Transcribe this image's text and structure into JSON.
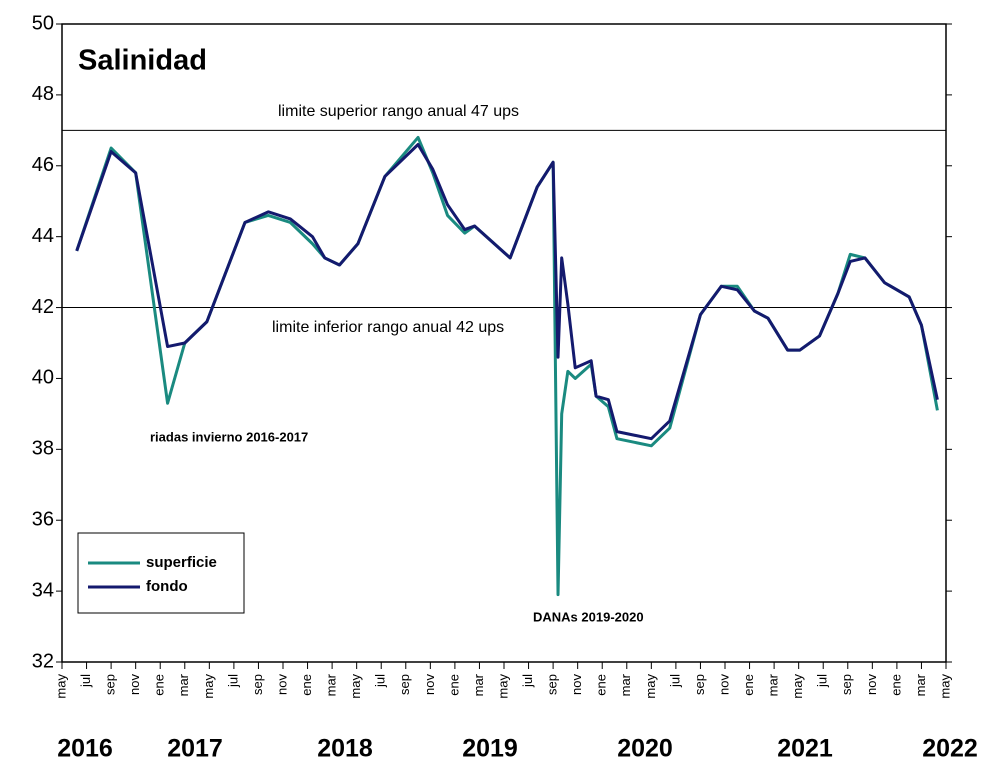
{
  "chart_data": {
    "type": "line",
    "title": "Salinidad",
    "x": [
      1.2,
      4,
      6,
      8.6,
      10,
      11.8,
      14.9,
      16.8,
      18.6,
      20.4,
      21.4,
      22.6,
      24.1,
      26.3,
      29,
      30.2,
      31.4,
      32.8,
      33.6,
      36.5,
      38.7,
      40,
      40.4,
      40.7,
      41.2,
      41.8,
      43.1,
      43.5,
      44.5,
      45.2,
      48,
      49.5,
      52,
      53.7,
      55,
      56.4,
      57.5,
      59.1,
      60.1,
      61.7,
      63.2,
      64.2,
      65.4,
      67,
      69,
      70,
      71.3
    ],
    "series": [
      {
        "name": "superficie",
        "color": "#1a8a80",
        "values": [
          43.6,
          46.5,
          45.8,
          39.3,
          41.0,
          41.6,
          44.4,
          44.6,
          44.4,
          43.8,
          43.4,
          43.2,
          43.8,
          45.7,
          46.8,
          45.8,
          44.6,
          44.1,
          44.3,
          43.4,
          45.4,
          46.1,
          33.9,
          39.0,
          40.2,
          40.0,
          40.4,
          39.5,
          39.2,
          38.3,
          38.1,
          38.6,
          41.8,
          42.6,
          42.6,
          41.9,
          41.7,
          40.8,
          40.8,
          41.2,
          42.4,
          43.5,
          43.4,
          42.7,
          42.3,
          41.5,
          39.1
        ]
      },
      {
        "name": "fondo",
        "color": "#141a6e",
        "values": [
          43.6,
          46.4,
          45.8,
          40.9,
          41.0,
          41.6,
          44.4,
          44.7,
          44.5,
          44.0,
          43.4,
          43.2,
          43.8,
          45.7,
          46.6,
          45.9,
          44.9,
          44.2,
          44.3,
          43.4,
          45.4,
          46.1,
          40.6,
          43.4,
          42.1,
          40.3,
          40.5,
          39.5,
          39.4,
          38.5,
          38.3,
          38.8,
          41.8,
          42.6,
          42.5,
          41.9,
          41.7,
          40.8,
          40.8,
          41.2,
          42.4,
          43.3,
          43.4,
          42.7,
          42.3,
          41.5,
          39.4
        ]
      }
    ],
    "xlim": [
      0,
      72
    ],
    "xticks": [
      {
        "value": 0,
        "label": "may"
      },
      {
        "value": 2,
        "label": "jul"
      },
      {
        "value": 4,
        "label": "sep"
      },
      {
        "value": 6,
        "label": "nov"
      },
      {
        "value": 8,
        "label": "ene"
      },
      {
        "value": 10,
        "label": "mar"
      },
      {
        "value": 12,
        "label": "may"
      },
      {
        "value": 14,
        "label": "jul"
      },
      {
        "value": 16,
        "label": "sep"
      },
      {
        "value": 18,
        "label": "nov"
      },
      {
        "value": 20,
        "label": "ene"
      },
      {
        "value": 22,
        "label": "mar"
      },
      {
        "value": 24,
        "label": "may"
      },
      {
        "value": 26,
        "label": "jul"
      },
      {
        "value": 28,
        "label": "sep"
      },
      {
        "value": 30,
        "label": "nov"
      },
      {
        "value": 32,
        "label": "ene"
      },
      {
        "value": 34,
        "label": "mar"
      },
      {
        "value": 36,
        "label": "may"
      },
      {
        "value": 38,
        "label": "jul"
      },
      {
        "value": 40,
        "label": "sep"
      },
      {
        "value": 42,
        "label": "nov"
      },
      {
        "value": 44,
        "label": "ene"
      },
      {
        "value": 46,
        "label": "mar"
      },
      {
        "value": 48,
        "label": "may"
      },
      {
        "value": 50,
        "label": "jul"
      },
      {
        "value": 52,
        "label": "sep"
      },
      {
        "value": 54,
        "label": "nov"
      },
      {
        "value": 56,
        "label": "ene"
      },
      {
        "value": 58,
        "label": "mar"
      },
      {
        "value": 60,
        "label": "may"
      },
      {
        "value": 62,
        "label": "jul"
      },
      {
        "value": 64,
        "label": "sep"
      },
      {
        "value": 66,
        "label": "nov"
      },
      {
        "value": 68,
        "label": "ene"
      },
      {
        "value": 70,
        "label": "mar"
      },
      {
        "value": 72,
        "label": "may"
      }
    ],
    "years": [
      "2016",
      "2017",
      "2018",
      "2019",
      "2020",
      "2021",
      "2022"
    ],
    "ylim": [
      32,
      50
    ],
    "yticks": [
      32,
      34,
      36,
      38,
      40,
      42,
      44,
      46,
      48,
      50
    ],
    "hlines": [
      {
        "value": 47,
        "label": "limite superior rango anual 47 ups"
      },
      {
        "value": 42,
        "label": "limite inferior rango anual 42 ups"
      }
    ],
    "annotations": [
      "riadas invierno 2016-2017",
      "DANAs 2019-2020"
    ]
  }
}
